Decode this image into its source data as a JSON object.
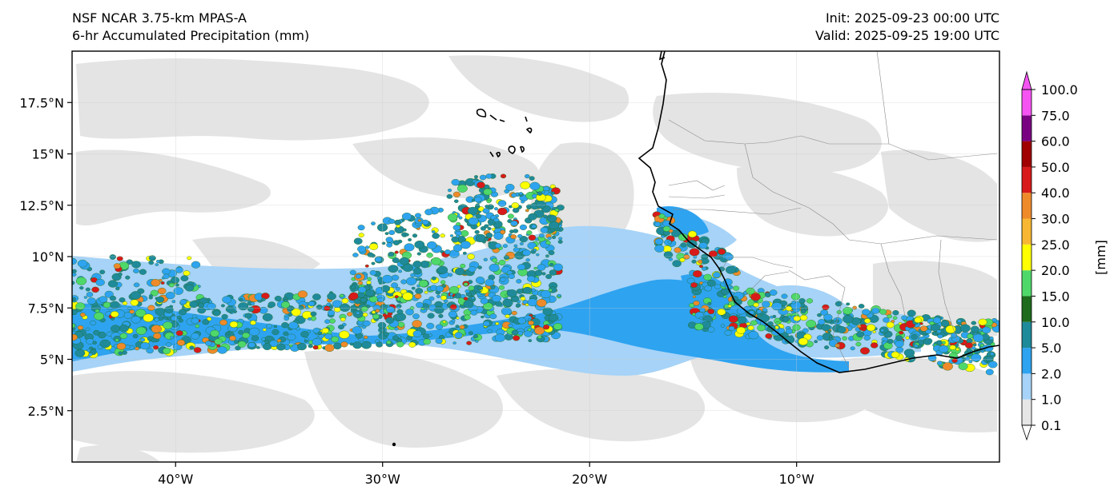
{
  "header": {
    "model": "NSF NCAR 3.75-km MPAS-A",
    "field": "6-hr Accumulated Precipitation (mm)",
    "init": "Init: 2025-09-23 00:00 UTC",
    "valid": "Valid: 2025-09-25 19:00 UTC"
  },
  "map": {
    "extent": {
      "lon_min": -45,
      "lon_max": -0.2,
      "lat_min": 0,
      "lat_max": 20
    },
    "x_ticks": [
      {
        "lon": -40,
        "label": "40°W"
      },
      {
        "lon": -30,
        "label": "30°W"
      },
      {
        "lon": -20,
        "label": "20°W"
      },
      {
        "lon": -10,
        "label": "10°W"
      }
    ],
    "y_ticks": [
      {
        "lat": 2.5,
        "label": "2.5°N"
      },
      {
        "lat": 5,
        "label": "5°N"
      },
      {
        "lat": 7.5,
        "label": "7.5°N"
      },
      {
        "lat": 10,
        "label": "10°N"
      },
      {
        "lat": 12.5,
        "label": "12.5°N"
      },
      {
        "lat": 15,
        "label": "15°N"
      },
      {
        "lat": 17.5,
        "label": "17.5°N"
      }
    ],
    "gridlines": true
  },
  "colorbar": {
    "unit_label": "[mm]",
    "levels": [
      "0.1",
      "1.0",
      "2.0",
      "5.0",
      "10.0",
      "15.0",
      "20.0",
      "25.0",
      "30.0",
      "40.0",
      "50.0",
      "60.0",
      "75.0",
      "100.0"
    ],
    "colors": [
      "#e6e6e6",
      "#a6d3f7",
      "#2ea3f0",
      "#1f8a9a",
      "#1e6b1e",
      "#4fd86a",
      "#ffff00",
      "#f7b733",
      "#ef8a2a",
      "#d81a1a",
      "#a00000",
      "#7a0082",
      "#f553f2"
    ]
  }
}
